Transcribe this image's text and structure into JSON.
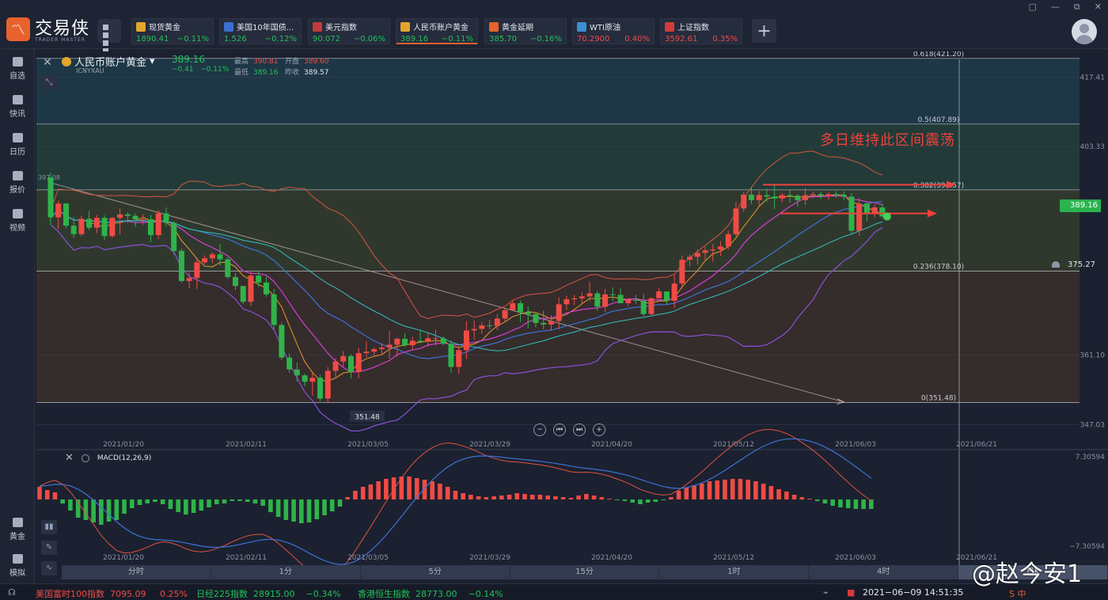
{
  "app": {
    "logo_text": "交易侠",
    "logo_sub": "TRADER MASTER",
    "window_controls": [
      "▢",
      "—",
      "⧉",
      "✕"
    ]
  },
  "tickers": [
    {
      "name": "现货黄金",
      "price": "1890.41",
      "change": "−0.11%",
      "dir": "down",
      "icon_color": "#e3a52b",
      "icon": "gold-coin-icon"
    },
    {
      "name": "美国10年国债...",
      "price": "1.526",
      "change": "−0.12%",
      "dir": "down",
      "icon_color": "#3b6fd4",
      "icon": "bar-chart-icon"
    },
    {
      "name": "美元指数",
      "price": "90.072",
      "change": "−0.06%",
      "dir": "down",
      "icon_color": "#c33a3a",
      "icon": "us-flag-icon"
    },
    {
      "name": "人民币账户黄金",
      "price": "389.16",
      "change": "−0.11%",
      "dir": "down",
      "icon_color": "#e3a52b",
      "icon": "gold-coin-icon",
      "active": true
    },
    {
      "name": "黄金延期",
      "price": "385.70",
      "change": "−0.16%",
      "dir": "down",
      "icon_color": "#e8622c",
      "icon": "gold-bar-icon"
    },
    {
      "name": "WTI原油",
      "price": "70.2900",
      "change": "0.40%",
      "dir": "up",
      "icon_color": "#3b8fd4",
      "icon": "oil-drop-icon"
    },
    {
      "name": "上证指数",
      "price": "3592.61",
      "change": "0.35%",
      "dir": "up",
      "icon_color": "#d43b3b",
      "icon": "index-icon"
    }
  ],
  "sidebar": {
    "items": [
      {
        "label": "自选",
        "icon": "favorites-icon"
      },
      {
        "label": "快讯",
        "icon": "news-icon"
      },
      {
        "label": "日历",
        "icon": "calendar-icon"
      },
      {
        "label": "报价",
        "icon": "quote-icon"
      },
      {
        "label": "视频",
        "icon": "video-icon"
      }
    ],
    "bottom_items": [
      {
        "label": "黄金",
        "icon": "gold-icon"
      },
      {
        "label": "模拟",
        "icon": "wallet-icon"
      }
    ]
  },
  "symbol": {
    "name": "人民币账户黄金",
    "code": "ICNYXAU",
    "price": "389.16",
    "change": "−0.41",
    "change_pct": "−0.11%",
    "high_label": "最高",
    "high": "390.81",
    "open_label": "开盘",
    "open": "389.60",
    "low_label": "最低",
    "low": "389.16",
    "prev_label": "昨收",
    "prev": "389.57"
  },
  "annotation": "多日维持此区间震荡",
  "price_tag": "389.16",
  "alert_tag": "375.27",
  "macd_label": "MACD(12,26,9)",
  "periods": [
    {
      "label": "分时",
      "selected": false
    },
    {
      "label": "1分",
      "selected": false
    },
    {
      "label": "5分",
      "selected": false
    },
    {
      "label": "15分",
      "selected": false
    },
    {
      "label": "1时",
      "selected": false
    },
    {
      "label": "4时",
      "selected": false
    },
    {
      "label": "日K",
      "selected": true
    }
  ],
  "status": {
    "items": [
      {
        "name": "美国富时100指数",
        "value": "7095.09",
        "change": "0.25%",
        "dir": "up"
      },
      {
        "name": "日经225指数",
        "value": "28915.00",
        "change": "−0.34%",
        "dir": "down"
      },
      {
        "name": "香港恒生指数",
        "value": "28773.00",
        "change": "−0.14%",
        "dir": "down"
      }
    ],
    "datetime": "2021−06−09 14:51:35",
    "ime": "S 中"
  },
  "watermark": "@赵今安1",
  "chart_data": {
    "type": "candlestick",
    "x_dates": [
      "2021/01/20",
      "2021/02/11",
      "2021/03/05",
      "2021/03/29",
      "2021/04/20",
      "2021/05/12",
      "2021/06/03",
      "2021/06/21"
    ],
    "y_ticks": [
      "417.41",
      "403.33",
      "361.10",
      "347.03"
    ],
    "y_range": [
      345,
      421
    ],
    "left_edge_label": "397.08",
    "low_marker": "351.48",
    "fib_levels": [
      {
        "label": "0.618(421.20)",
        "value": 421.2
      },
      {
        "label": "0.5(407.89)",
        "value": 407.89
      },
      {
        "label": "0.382(394.57)",
        "value": 394.57
      },
      {
        "label": "0.236(378.10)",
        "value": 378.1
      },
      {
        "label": "0(351.48)",
        "value": 351.48
      }
    ],
    "candles": [
      [
        397.1,
        398.0,
        387.5,
        389.0
      ],
      [
        389.0,
        392.4,
        386.6,
        391.8
      ],
      [
        391.8,
        391.9,
        386.8,
        387.3
      ],
      [
        387.3,
        389.1,
        384.9,
        385.6
      ],
      [
        385.6,
        389.3,
        385.2,
        388.7
      ],
      [
        388.7,
        390.3,
        386.4,
        386.9
      ],
      [
        386.9,
        389.5,
        385.8,
        388.9
      ],
      [
        388.9,
        389.4,
        384.4,
        385.2
      ],
      [
        385.2,
        389.1,
        384.9,
        388.9
      ],
      [
        388.9,
        390.8,
        385.5,
        389.6
      ],
      [
        389.6,
        390.0,
        387.9,
        389.3
      ],
      [
        389.3,
        389.8,
        387.1,
        388.6
      ],
      [
        388.6,
        389.6,
        387.5,
        388.6
      ],
      [
        388.6,
        389.5,
        384.0,
        385.4
      ],
      [
        385.4,
        390.4,
        384.6,
        389.8
      ],
      [
        389.8,
        391.0,
        387.2,
        387.9
      ],
      [
        387.9,
        388.2,
        381.5,
        382.2
      ],
      [
        382.2,
        382.7,
        375.7,
        376.1
      ],
      [
        376.1,
        377.9,
        374.6,
        376.7
      ],
      [
        376.7,
        380.9,
        374.5,
        379.9
      ],
      [
        379.9,
        381.3,
        379.5,
        380.7
      ],
      [
        380.7,
        381.9,
        379.7,
        381.5
      ],
      [
        381.5,
        383.6,
        379.2,
        380.5
      ],
      [
        380.5,
        380.9,
        376.5,
        376.9
      ],
      [
        376.9,
        377.8,
        374.3,
        375.1
      ],
      [
        375.1,
        374.7,
        371.4,
        371.9
      ],
      [
        371.9,
        377.9,
        371.0,
        377.2
      ],
      [
        377.2,
        378.2,
        374.9,
        375.8
      ],
      [
        375.8,
        377.0,
        372.9,
        373.4
      ],
      [
        373.4,
        374.5,
        366.3,
        367.2
      ],
      [
        367.2,
        367.7,
        360.1,
        360.6
      ],
      [
        360.6,
        361.4,
        357.5,
        358.2
      ],
      [
        358.2,
        359.6,
        355.7,
        357.0
      ],
      [
        357.0,
        357.3,
        354.8,
        355.7
      ],
      [
        355.7,
        357.5,
        352.9,
        356.5
      ],
      [
        356.5,
        357.1,
        351.8,
        352.3
      ],
      [
        352.3,
        358.7,
        351.5,
        357.9
      ],
      [
        357.9,
        360.5,
        356.6,
        359.8
      ],
      [
        359.8,
        361.9,
        358.8,
        360.9
      ],
      [
        360.9,
        361.3,
        356.4,
        357.7
      ],
      [
        357.7,
        362.6,
        356.4,
        361.5
      ],
      [
        361.5,
        363.9,
        360.6,
        361.8
      ],
      [
        361.8,
        362.7,
        360.8,
        362.3
      ],
      [
        362.3,
        363.5,
        361.2,
        362.6
      ],
      [
        362.6,
        366.0,
        360.4,
        363.2
      ],
      [
        363.2,
        364.7,
        360.7,
        364.4
      ],
      [
        364.4,
        365.5,
        362.8,
        363.1
      ],
      [
        363.1,
        364.8,
        362.3,
        364.0
      ],
      [
        364.0,
        366.3,
        363.8,
        363.8
      ],
      [
        363.8,
        365.5,
        362.8,
        364.5
      ],
      [
        364.5,
        366.2,
        363.1,
        364.5
      ],
      [
        364.5,
        364.9,
        363.1,
        363.4
      ],
      [
        363.4,
        364.1,
        357.5,
        358.7
      ],
      [
        358.7,
        362.9,
        357.3,
        362.1
      ],
      [
        362.1,
        368.0,
        360.3,
        366.1
      ],
      [
        366.1,
        368.1,
        364.2,
        366.4
      ],
      [
        366.4,
        367.8,
        365.4,
        367.1
      ],
      [
        367.1,
        368.2,
        366.3,
        367.0
      ],
      [
        367.0,
        369.4,
        366.1,
        368.5
      ],
      [
        368.5,
        370.5,
        367.8,
        370.2
      ],
      [
        370.2,
        372.3,
        370.3,
        371.6
      ],
      [
        371.6,
        372.1,
        367.8,
        369.8
      ],
      [
        369.8,
        371.0,
        366.5,
        369.4
      ],
      [
        369.4,
        369.8,
        366.7,
        367.6
      ],
      [
        367.6,
        370.1,
        366.3,
        367.3
      ],
      [
        367.3,
        369.2,
        366.1,
        368.0
      ],
      [
        368.0,
        372.8,
        366.3,
        371.4
      ],
      [
        371.4,
        373.1,
        370.2,
        372.4
      ],
      [
        372.4,
        373.3,
        371.2,
        372.6
      ],
      [
        372.6,
        373.8,
        371.6,
        373.0
      ],
      [
        373.0,
        375.9,
        372.0,
        373.6
      ],
      [
        373.6,
        374.1,
        370.0,
        370.9
      ],
      [
        370.9,
        374.5,
        369.8,
        373.4
      ],
      [
        373.4,
        374.8,
        372.0,
        373.3
      ],
      [
        373.3,
        374.7,
        371.9,
        371.6
      ],
      [
        371.6,
        372.6,
        371.0,
        372.3
      ],
      [
        372.3,
        373.3,
        371.5,
        372.1
      ],
      [
        372.1,
        373.5,
        368.9,
        369.4
      ],
      [
        369.4,
        372.8,
        369.1,
        372.6
      ],
      [
        372.6,
        374.7,
        372.8,
        374.0
      ],
      [
        374.0,
        373.5,
        371.4,
        372.1
      ],
      [
        372.1,
        377.4,
        370.6,
        375.6
      ],
      [
        375.6,
        381.3,
        374.6,
        380.4
      ],
      [
        380.4,
        381.5,
        379.1,
        381.0
      ],
      [
        381.0,
        382.5,
        379.5,
        381.8
      ],
      [
        381.8,
        383.1,
        380.4,
        382.3
      ],
      [
        382.3,
        383.6,
        380.0,
        382.5
      ],
      [
        382.5,
        384.2,
        381.2,
        383.1
      ],
      [
        383.1,
        386.3,
        382.5,
        385.6
      ],
      [
        385.6,
        392.1,
        385.1,
        390.8
      ],
      [
        390.8,
        394.2,
        390.1,
        393.6
      ],
      [
        393.6,
        395.1,
        391.7,
        392.5
      ],
      [
        392.5,
        394.3,
        391.3,
        393.5
      ],
      [
        393.5,
        394.8,
        392.1,
        393.2
      ],
      [
        393.2,
        395.7,
        390.7,
        392.8
      ],
      [
        392.8,
        393.9,
        392.1,
        393.5
      ],
      [
        393.5,
        394.7,
        392.0,
        393.4
      ],
      [
        393.4,
        393.7,
        391.2,
        392.5
      ],
      [
        392.5,
        394.9,
        391.5,
        393.5
      ],
      [
        393.5,
        394.2,
        392.8,
        393.7
      ],
      [
        393.7,
        394.1,
        392.7,
        393.4
      ],
      [
        393.4,
        394.0,
        392.6,
        393.7
      ],
      [
        393.7,
        394.3,
        393.0,
        393.6
      ],
      [
        393.6,
        394.3,
        392.5,
        393.2
      ],
      [
        393.2,
        393.9,
        385.6,
        386.3
      ],
      [
        386.3,
        392.9,
        385.3,
        391.8
      ],
      [
        391.8,
        392.0,
        388.2,
        389.7
      ],
      [
        389.7,
        391.6,
        389.0,
        391.0
      ],
      [
        391.0,
        391.8,
        389.0,
        389.2
      ]
    ],
    "macd_hist": [
      1.6,
      1.2,
      0.9,
      -0.5,
      -1.4,
      -2.3,
      -2.6,
      -2.9,
      -3.2,
      -2.8,
      -2.6,
      -1.8,
      -1.1,
      -0.7,
      -0.5,
      -0.3,
      -0.6,
      -1.2,
      -1.6,
      -1.9,
      -1.7,
      -1.4,
      -1.0,
      -0.6,
      -0.5,
      -0.2,
      -0.2,
      -0.3,
      -0.5,
      -0.8,
      -1.6,
      -2.2,
      -2.6,
      -2.8,
      -3.0,
      -2.9,
      -2.5,
      -2.0,
      -1.5,
      -0.9,
      0.3,
      1.1,
      1.6,
      1.9,
      2.3,
      2.6,
      2.8,
      2.9,
      2.9,
      2.7,
      2.5,
      2.3,
      2.0,
      1.6,
      1.1,
      0.8,
      0.6,
      0.4,
      0.3,
      0.4,
      0.5,
      0.6,
      0.8,
      0.7,
      0.6,
      0.6,
      0.5,
      0.4,
      0.3,
      0.2,
      0.5,
      0.7,
      0.5,
      0.3,
      0.1,
      -0.1,
      -0.2,
      -0.4,
      -0.6,
      -0.4,
      -0.3,
      -0.1,
      0.3,
      1.1,
      1.5,
      1.8,
      2.0,
      2.3,
      2.4,
      2.5,
      2.6,
      2.6,
      2.5,
      2.3,
      2.0,
      1.7,
      1.3,
      1.0,
      0.6,
      0.3,
      0.1,
      -0.2,
      -0.5,
      -0.8,
      -1.0,
      -1.1,
      -1.2,
      -1.2,
      -1.2
    ],
    "bands_note": "Bollinger / MA overlays drawn from closes"
  }
}
